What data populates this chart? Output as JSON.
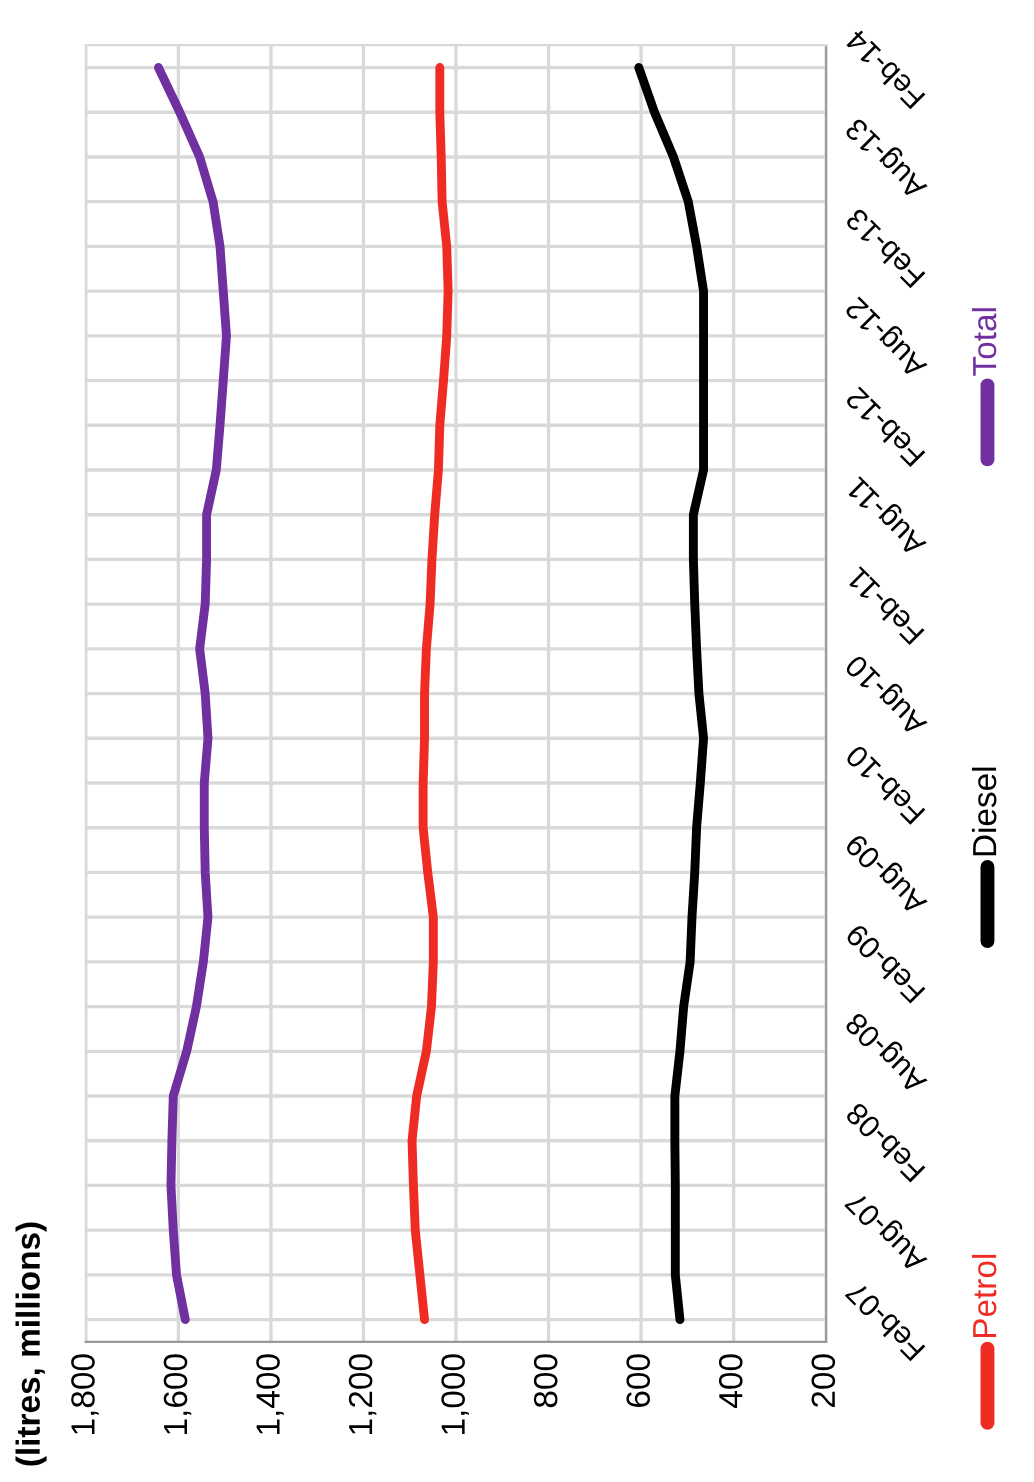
{
  "chart_data": {
    "type": "line",
    "orientation": "horizontal",
    "ylabel": "(litres, millions)",
    "categories": [
      "Feb-14",
      null,
      "Aug-13",
      null,
      "Feb-13",
      null,
      "Aug-12",
      null,
      "Feb-12",
      null,
      "Aug-11",
      null,
      "Feb-11",
      null,
      "Aug-10",
      null,
      "Feb-10",
      null,
      "Aug-09",
      null,
      "Feb-09",
      null,
      "Aug-08",
      null,
      "Feb-08",
      null,
      "Aug-07",
      null,
      "Feb-07"
    ],
    "series": [
      {
        "name": "Petrol",
        "color": "#ee2c24",
        "values": [
          1035,
          1035,
          1032,
          1030,
          1020,
          1017,
          1020,
          1027,
          1035,
          1038,
          1046,
          1052,
          1056,
          1064,
          1068,
          1068,
          1071,
          1071,
          1061,
          1049,
          1049,
          1053,
          1064,
          1085,
          1095,
          1092,
          1088,
          1078,
          1068
        ]
      },
      {
        "name": "Diesel",
        "color": "#000000",
        "values": [
          605,
          571,
          530,
          498,
          480,
          465,
          465,
          465,
          465,
          465,
          487,
          487,
          484,
          480,
          475,
          465,
          472,
          480,
          484,
          490,
          494,
          508,
          516,
          527,
          527,
          526,
          526,
          526,
          516
        ]
      },
      {
        "name": "Total",
        "color": "#7030a0",
        "values": [
          1643,
          1597,
          1554,
          1525,
          1510,
          1503,
          1496,
          1503,
          1510,
          1518,
          1539,
          1539,
          1542,
          1554,
          1542,
          1536,
          1544,
          1544,
          1542,
          1536,
          1546,
          1561,
          1582,
          1611,
          1614,
          1616,
          1611,
          1604,
          1585
        ]
      }
    ],
    "xlim": [
      1800,
      200
    ],
    "xticks": [
      {
        "value": 1800,
        "label": "1,800"
      },
      {
        "value": 1600,
        "label": "1,600"
      },
      {
        "value": 1400,
        "label": "1,400"
      },
      {
        "value": 1200,
        "label": "1,200"
      },
      {
        "value": 1000,
        "label": "1,000"
      },
      800,
      600,
      400,
      200
    ],
    "grid": true,
    "legend": "right",
    "line_style": "solid",
    "marker": "none"
  }
}
